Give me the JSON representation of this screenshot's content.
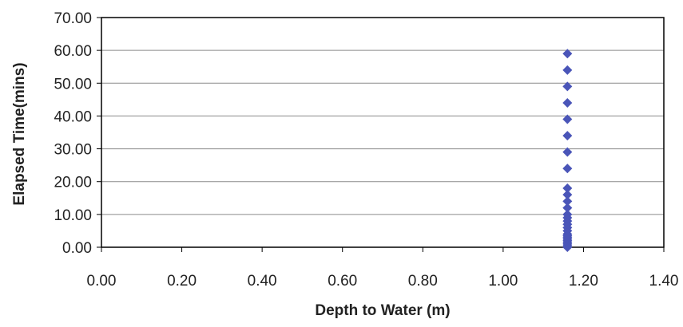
{
  "chart_data": {
    "type": "scatter",
    "title": "",
    "xlabel": "Depth to Water (m)",
    "ylabel": "Elapsed Time(mins)",
    "xlim": [
      0,
      1.4
    ],
    "ylim": [
      0,
      70
    ],
    "x_ticks": [
      "0.00",
      "0.20",
      "0.40",
      "0.60",
      "0.80",
      "1.00",
      "1.20",
      "1.40"
    ],
    "y_ticks": [
      "0.00",
      "10.00",
      "20.00",
      "30.00",
      "40.00",
      "50.00",
      "60.00",
      "70.00"
    ],
    "grid": "horizontal",
    "legend": "none",
    "marker": "diamond",
    "color": "#4a55b8",
    "points": [
      {
        "x": 1.16,
        "y": 0.0
      },
      {
        "x": 1.16,
        "y": 0.5
      },
      {
        "x": 1.16,
        "y": 1.0
      },
      {
        "x": 1.16,
        "y": 1.5
      },
      {
        "x": 1.16,
        "y": 2.0
      },
      {
        "x": 1.16,
        "y": 2.5
      },
      {
        "x": 1.16,
        "y": 3.0
      },
      {
        "x": 1.16,
        "y": 3.5
      },
      {
        "x": 1.16,
        "y": 4.0
      },
      {
        "x": 1.16,
        "y": 5.0
      },
      {
        "x": 1.16,
        "y": 6.0
      },
      {
        "x": 1.16,
        "y": 7.0
      },
      {
        "x": 1.16,
        "y": 8.0
      },
      {
        "x": 1.16,
        "y": 9.0
      },
      {
        "x": 1.16,
        "y": 10.0
      },
      {
        "x": 1.16,
        "y": 12.0
      },
      {
        "x": 1.16,
        "y": 14.0
      },
      {
        "x": 1.16,
        "y": 16.0
      },
      {
        "x": 1.16,
        "y": 18.0
      },
      {
        "x": 1.16,
        "y": 24.0
      },
      {
        "x": 1.16,
        "y": 29.0
      },
      {
        "x": 1.16,
        "y": 34.0
      },
      {
        "x": 1.16,
        "y": 39.0
      },
      {
        "x": 1.16,
        "y": 44.0
      },
      {
        "x": 1.16,
        "y": 49.0
      },
      {
        "x": 1.16,
        "y": 54.0
      },
      {
        "x": 1.16,
        "y": 59.0
      }
    ]
  }
}
